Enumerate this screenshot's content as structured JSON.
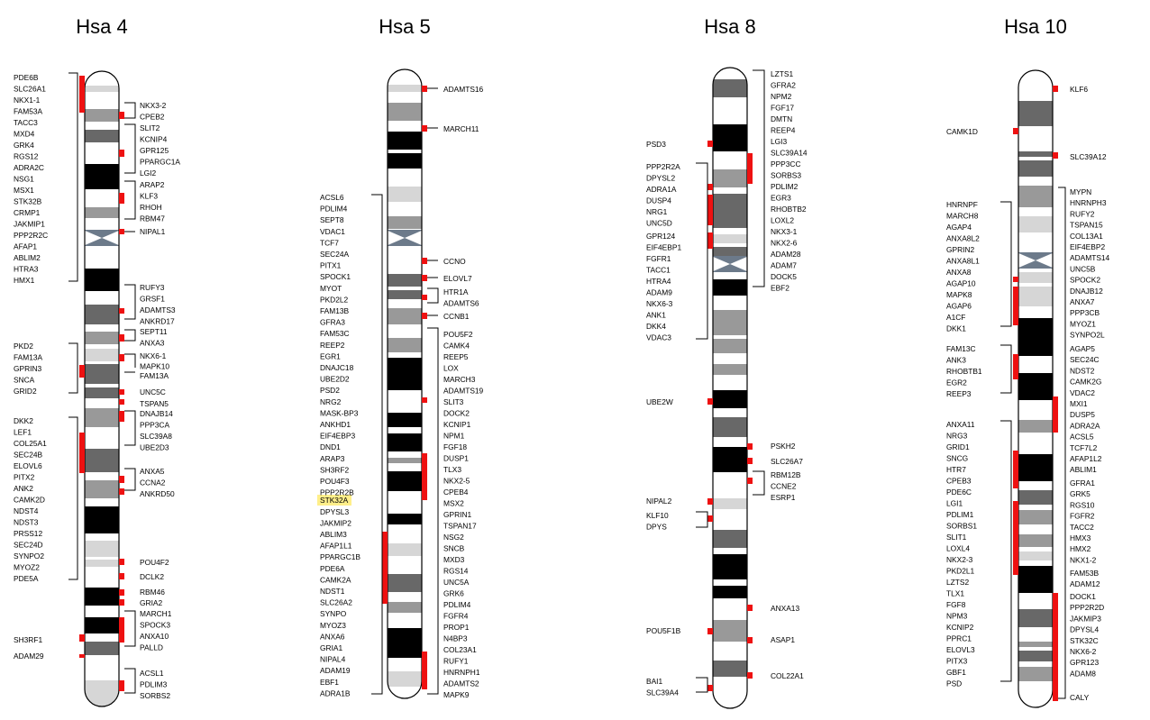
{
  "colors": {
    "marker": "#ee1111",
    "highlight": "#ffef8a",
    "band_black": "#000000",
    "band_dark": "#686868",
    "band_mid": "#999999",
    "band_light": "#d6d6d6",
    "centromere": "#6c7a8a"
  },
  "chromosomes": [
    {
      "id": "hsa4",
      "title": "Hsa 4",
      "groups": [
        {
          "side": "left",
          "genes": [
            "PDE6B",
            "SLC26A1",
            "NKX1-1",
            "FAM53A",
            "TACC3",
            "MXD4",
            "GRK4",
            "RGS12",
            "ADRA2C",
            "NSG1",
            "MSX1",
            "STK32B",
            "CRMP1",
            "JAKMIP1",
            "PPP2R2C",
            "AFAP1",
            "ABLIM2",
            "HTRA3",
            "HMX1"
          ]
        },
        {
          "side": "right",
          "genes": [
            "NKX3-2",
            "CPEB2"
          ]
        },
        {
          "side": "right",
          "genes": [
            "SLIT2",
            "KCNIP4",
            "GPR125",
            "PPARGC1A",
            "LGI2"
          ]
        },
        {
          "side": "right",
          "genes": [
            "ARAP2",
            "KLF3",
            "RHOH",
            "RBM47"
          ]
        },
        {
          "side": "right",
          "genes": [
            "NIPAL1"
          ]
        },
        {
          "side": "right",
          "genes": [
            "RUFY3",
            "GRSF1",
            "ADAMTS3",
            "ANKRD17"
          ]
        },
        {
          "side": "right",
          "genes": [
            "SEPT11",
            "ANXA3"
          ]
        },
        {
          "side": "left",
          "genes": [
            "PKD2",
            "FAM13A",
            "GPRIN3",
            "SNCA",
            "GRID2"
          ]
        },
        {
          "side": "right",
          "genes": [
            "NKX6-1",
            "MAPK10",
            "FAM13A"
          ]
        },
        {
          "side": "right",
          "genes": [
            "UNC5C"
          ]
        },
        {
          "side": "right",
          "genes": [
            "TSPAN5"
          ]
        },
        {
          "side": "right",
          "genes": [
            "DNAJB14",
            "PPP3CA",
            "SLC39A8",
            "UBE2D3"
          ]
        },
        {
          "side": "left",
          "genes": [
            "DKK2",
            "LEF1",
            "COL25A1",
            "SEC24B",
            "ELOVL6",
            "PITX2",
            "ANK2",
            "CAMK2D",
            "NDST4",
            "NDST3",
            "PRSS12",
            "SEC24D",
            "SYNPO2",
            "MYOZ2",
            "PDE5A"
          ]
        },
        {
          "side": "right",
          "genes": [
            "ANXA5",
            "CCNA2",
            "ANKRD50"
          ]
        },
        {
          "side": "right",
          "genes": [
            "POU4F2"
          ]
        },
        {
          "side": "right",
          "genes": [
            "DCLK2"
          ]
        },
        {
          "side": "right",
          "genes": [
            "RBM46"
          ]
        },
        {
          "side": "right",
          "genes": [
            "GRIA2"
          ]
        },
        {
          "side": "right",
          "genes": [
            "MARCH1",
            "SPOCK3",
            "ANXA10",
            "PALLD"
          ]
        },
        {
          "side": "left",
          "genes": [
            "SH3RF1"
          ]
        },
        {
          "side": "left",
          "genes": [
            "ADAM29"
          ]
        },
        {
          "side": "right",
          "genes": [
            "ACSL1",
            "PDLIM3",
            "SORBS2"
          ]
        }
      ]
    },
    {
      "id": "hsa5",
      "title": "Hsa 5",
      "highlighted": "STK32A",
      "groups": [
        {
          "side": "right",
          "genes": [
            "ADAMTS16"
          ]
        },
        {
          "side": "right",
          "genes": [
            "MARCH11"
          ]
        },
        {
          "side": "left",
          "genes": [
            "ACSL6",
            "PDLIM4",
            "SEPT8",
            "VDAC1",
            "TCF7",
            "SEC24A",
            "PITX1",
            "SPOCK1",
            "MYOT",
            "PKD2L2",
            "FAM13B",
            "GFRA3",
            "FAM53C",
            "REEP2",
            "EGR1",
            "DNAJC18",
            "UBE2D2",
            "PSD2",
            "NRG2",
            "MASK-BP3",
            "ANKHD1",
            "EIF4EBP3",
            "DND1",
            "ARAP3",
            "SH3RF2",
            "POU4F3",
            "PPP2R2B",
            "STK32A",
            "DPYSL3",
            "JAKMIP2",
            "ABLIM3",
            "AFAP1L1",
            "PPARGC1B",
            "PDE6A",
            "CAMK2A",
            "NDST1",
            "SLC26A2",
            "SYNPO",
            "MYOZ3",
            "ANXA6",
            "GRIA1",
            "NIPAL4",
            "ADAM19",
            "EBF1",
            "ADRA1B"
          ]
        },
        {
          "side": "right",
          "genes": [
            "CCNO"
          ]
        },
        {
          "side": "right",
          "genes": [
            "ELOVL7"
          ]
        },
        {
          "side": "right",
          "genes": [
            "HTR1A",
            "ADAMTS6"
          ]
        },
        {
          "side": "right",
          "genes": [
            "CCNB1"
          ]
        },
        {
          "side": "right",
          "genes": [
            "POU5F2",
            "CAMK4",
            "REEP5",
            "LOX",
            "MARCH3",
            "ADAMTS19",
            "SLIT3",
            "DOCK2",
            "KCNIP1",
            "NPM1",
            "FGF18",
            "DUSP1",
            "TLX3",
            "NKX2-5",
            "CPEB4",
            "MSX2",
            "GPRIN1",
            "TSPAN17",
            "NSG2",
            "SNCB",
            "MXD3",
            "RGS14",
            "UNC5A",
            "GRK6",
            "PDLIM4",
            "FGFR4",
            "PROP1",
            "N4BP3",
            "COL23A1",
            "RUFY1",
            "HNRNPH1",
            "ADAMTS2",
            "MAPK9"
          ]
        }
      ]
    },
    {
      "id": "hsa8",
      "title": "Hsa 8",
      "groups": [
        {
          "side": "right",
          "genes": [
            "LZTS1",
            "GFRA2",
            "NPM2",
            "FGF17",
            "DMTN",
            "REEP4",
            "LGI3",
            "SLC39A14",
            "PPP3CC",
            "SORBS3",
            "PDLIM2",
            "EGR3",
            "RHOBTB2",
            "LOXL2",
            "NKX3-1",
            "NKX2-6",
            "ADAM28",
            "ADAM7",
            "DOCK5",
            "EBF2"
          ]
        },
        {
          "side": "left",
          "genes": [
            "PSD3"
          ]
        },
        {
          "side": "left",
          "genes": [
            "PPP2R2A",
            "DPYSL2",
            "ADRA1A",
            "DUSP4",
            "NRG1",
            "UNC5D",
            "GPR124",
            "EIF4EBP1",
            "FGFR1",
            "TACC1",
            "HTRA4",
            "ADAM9",
            "NKX6-3",
            "ANK1",
            "DKK4",
            "VDAC3"
          ]
        },
        {
          "side": "left",
          "genes": [
            "UBE2W"
          ]
        },
        {
          "side": "right",
          "genes": [
            "PSKH2"
          ]
        },
        {
          "side": "right",
          "genes": [
            "SLC26A7"
          ]
        },
        {
          "side": "right",
          "genes": [
            "RBM12B",
            "CCNE2",
            "ESRP1"
          ]
        },
        {
          "side": "left",
          "genes": [
            "NIPAL2"
          ]
        },
        {
          "side": "left",
          "genes": [
            "KLF10",
            "DPYS"
          ]
        },
        {
          "side": "right",
          "genes": [
            "ANXA13"
          ]
        },
        {
          "side": "left",
          "genes": [
            "POU5F1B"
          ]
        },
        {
          "side": "right",
          "genes": [
            "ASAP1"
          ]
        },
        {
          "side": "right",
          "genes": [
            "COL22A1"
          ]
        },
        {
          "side": "left",
          "genes": [
            "BAI1",
            "SLC39A4"
          ]
        }
      ]
    },
    {
      "id": "hsa10",
      "title": "Hsa 10",
      "groups": [
        {
          "side": "right",
          "genes": [
            "KLF6"
          ]
        },
        {
          "side": "left",
          "genes": [
            "CAMK1D"
          ]
        },
        {
          "side": "right",
          "genes": [
            "SLC39A12"
          ]
        },
        {
          "side": "right",
          "genes": [
            "MYPN",
            "HNRNPH3",
            "RUFY2",
            "TSPAN15",
            "COL13A1",
            "EIF4EBP2",
            "ADAMTS14",
            "UNC5B",
            "SPOCK2",
            "DNAJB12",
            "ANXA7",
            "PPP3CB",
            "MYOZ1",
            "SYNPO2L",
            "AGAP5",
            "SEC24C",
            "NDST2",
            "CAMK2G",
            "VDAC2",
            "MXI1",
            "DUSP5",
            "ADRA2A",
            "ACSL5",
            "TCF7L2",
            "AFAP1L2",
            "ABLIM1",
            "GFRA1",
            "GRK5",
            "RGS10",
            "FGFR2",
            "TACC2",
            "HMX3",
            "HMX2",
            "NKX1-2",
            "FAM53B",
            "ADAM12",
            "DOCK1",
            "PPP2R2D",
            "JAKMIP3",
            "DPYSL4",
            "STK32C",
            "NKX6-2",
            "GPR123",
            "ADAM8",
            "CALY"
          ]
        },
        {
          "side": "left",
          "genes": [
            "HNRNPF",
            "MARCH8",
            "AGAP4",
            "ANXA8L2",
            "GPRIN2",
            "ANXA8L1",
            "ANXA8",
            "AGAP10",
            "MAPK8",
            "AGAP6",
            "A1CF",
            "DKK1"
          ]
        },
        {
          "side": "left",
          "genes": [
            "FAM13C",
            "ANK3",
            "RHOBTB1",
            "EGR2",
            "REEP3"
          ]
        },
        {
          "side": "left",
          "genes": [
            "ANXA11",
            "NRG3",
            "GRID1",
            "SNCG",
            "HTR7",
            "CPEB3",
            "PDE6C",
            "LGI1",
            "PDLIM1",
            "SORBS1",
            "SLIT1",
            "LOXL4",
            "NKX2-3",
            "PKD2L1",
            "LZTS2",
            "TLX1",
            "FGF8",
            "NPM3",
            "KCNIP2",
            "PPRC1",
            "ELOVL3",
            "PITX3",
            "GBF1",
            "PSD"
          ]
        }
      ]
    }
  ]
}
